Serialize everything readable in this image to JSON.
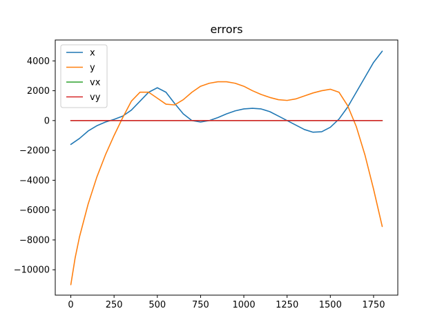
{
  "chart_data": {
    "type": "line",
    "title": "errors",
    "xlabel": "",
    "ylabel": "",
    "xlim": [
      -90,
      1890
    ],
    "ylim": [
      -11700,
      5400
    ],
    "xticks": [
      0,
      250,
      500,
      750,
      1000,
      1250,
      1500,
      1750
    ],
    "yticks": [
      -10000,
      -8000,
      -6000,
      -4000,
      -2000,
      0,
      2000,
      4000
    ],
    "grid": false,
    "legend_position": "top-left",
    "series": [
      {
        "name": "x",
        "color": "#1f77b4",
        "x": [
          0,
          50,
          100,
          150,
          200,
          250,
          300,
          350,
          400,
          450,
          500,
          550,
          600,
          650,
          700,
          750,
          800,
          850,
          900,
          950,
          1000,
          1050,
          1100,
          1150,
          1200,
          1250,
          1300,
          1350,
          1400,
          1450,
          1500,
          1550,
          1600,
          1650,
          1700,
          1750,
          1800
        ],
        "y": [
          -1600,
          -1200,
          -700,
          -350,
          -100,
          80,
          300,
          700,
          1300,
          1900,
          2200,
          1900,
          1150,
          450,
          0,
          -100,
          0,
          200,
          450,
          650,
          780,
          820,
          780,
          600,
          300,
          0,
          -300,
          -600,
          -780,
          -750,
          -450,
          100,
          900,
          1900,
          2900,
          3900,
          4650
        ]
      },
      {
        "name": "y",
        "color": "#ff7f0e",
        "x": [
          0,
          25,
          50,
          100,
          150,
          200,
          250,
          300,
          350,
          400,
          450,
          500,
          550,
          600,
          650,
          700,
          750,
          800,
          850,
          900,
          950,
          1000,
          1050,
          1100,
          1150,
          1200,
          1250,
          1300,
          1350,
          1400,
          1450,
          1500,
          1550,
          1600,
          1650,
          1700,
          1750,
          1800
        ],
        "y": [
          -11000,
          -9200,
          -7800,
          -5600,
          -3800,
          -2300,
          -1000,
          200,
          1300,
          1900,
          1900,
          1500,
          1100,
          1050,
          1400,
          1900,
          2300,
          2500,
          2600,
          2600,
          2500,
          2300,
          2000,
          1750,
          1550,
          1400,
          1350,
          1450,
          1650,
          1850,
          2000,
          2100,
          1900,
          1000,
          -400,
          -2300,
          -4600,
          -7100
        ]
      },
      {
        "name": "vx",
        "color": "#2ca02c",
        "x": [
          0,
          1800
        ],
        "y": [
          0,
          0
        ]
      },
      {
        "name": "vy",
        "color": "#d62728",
        "x": [
          0,
          1800
        ],
        "y": [
          0,
          0
        ]
      }
    ]
  }
}
